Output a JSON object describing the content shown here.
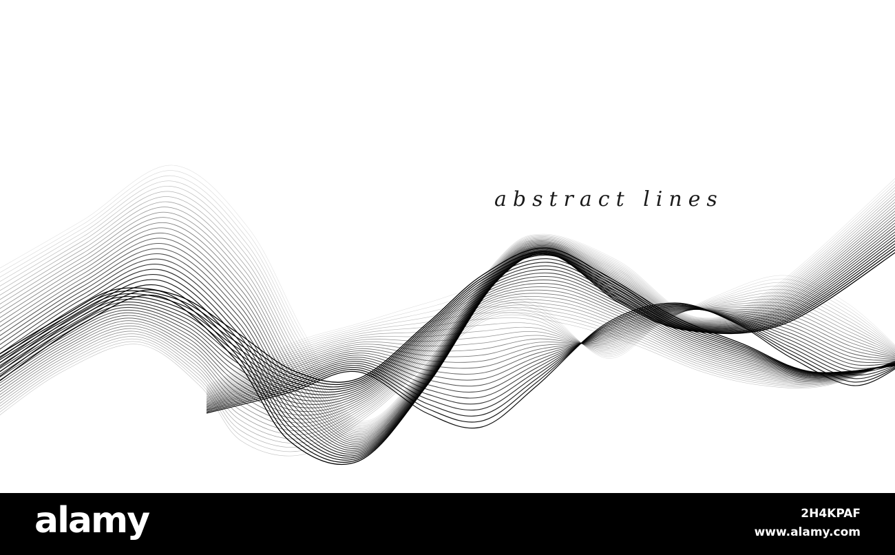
{
  "artwork": {
    "caption": "abstract lines",
    "line_color": "#000000",
    "background_color": "#ffffff"
  },
  "footer": {
    "brand": "alamy",
    "image_id": "2H4KPAF",
    "site": "www.alamy.com",
    "background_color": "#000000",
    "text_color": "#ffffff"
  }
}
